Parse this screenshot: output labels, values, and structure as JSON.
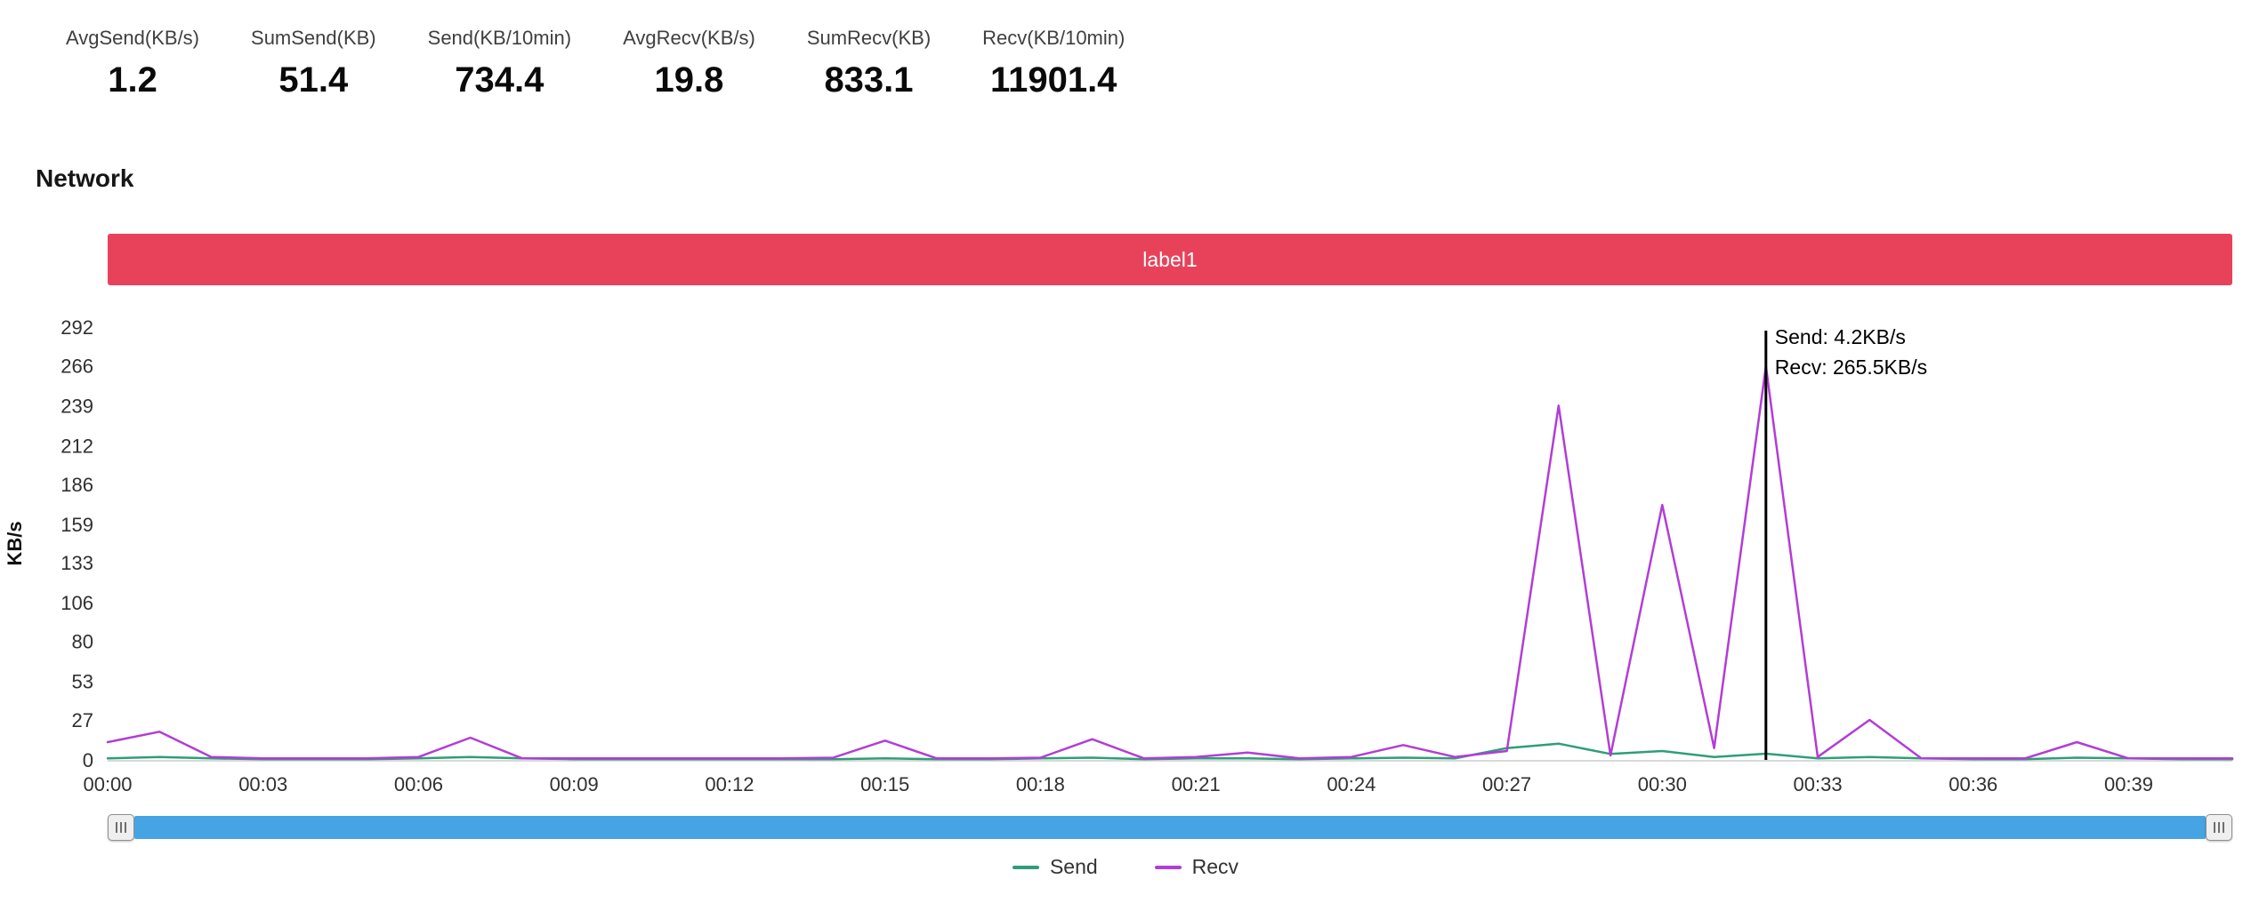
{
  "stats": [
    {
      "label": "AvgSend(KB/s)",
      "value": "1.2"
    },
    {
      "label": "SumSend(KB)",
      "value": "51.4"
    },
    {
      "label": "Send(KB/10min)",
      "value": "734.4"
    },
    {
      "label": "AvgRecv(KB/s)",
      "value": "19.8"
    },
    {
      "label": "SumRecv(KB)",
      "value": "833.1"
    },
    {
      "label": "Recv(KB/10min)",
      "value": "11901.4"
    }
  ],
  "section_title": "Network",
  "banner_label": "label1",
  "colors": {
    "banner": "#e8425a",
    "send": "#2f9e77",
    "recv": "#b23dd6",
    "slider_track": "#47a4e4",
    "marker_line": "#000000"
  },
  "chart_data": {
    "type": "line",
    "title": "Network",
    "ylabel": "KB/s",
    "ylim": [
      0,
      292
    ],
    "grid": false,
    "legend_position": "bottom",
    "y_ticks": [
      0,
      27,
      53,
      80,
      106,
      133,
      159,
      186,
      212,
      239,
      266,
      292
    ],
    "x": [
      0,
      1,
      2,
      3,
      4,
      5,
      6,
      7,
      8,
      9,
      10,
      11,
      12,
      13,
      14,
      15,
      16,
      17,
      18,
      19,
      20,
      21,
      22,
      23,
      24,
      25,
      26,
      27,
      28,
      29,
      30,
      31,
      32,
      33,
      34,
      35,
      36,
      37,
      38,
      39,
      40,
      41
    ],
    "x_tick_minutes": [
      0,
      3,
      6,
      9,
      12,
      15,
      18,
      21,
      24,
      27,
      30,
      33,
      36,
      39
    ],
    "x_tick_labels": [
      "00:00",
      "00:03",
      "00:06",
      "00:09",
      "00:12",
      "00:15",
      "00:18",
      "00:21",
      "00:24",
      "00:27",
      "00:30",
      "00:33",
      "00:36",
      "00:39"
    ],
    "series": [
      {
        "name": "Send",
        "color": "#2f9e77",
        "values": [
          1,
          2,
          1,
          0.5,
          0.5,
          0.5,
          1,
          2,
          1,
          0.5,
          0.5,
          0.5,
          0.5,
          0.5,
          0.5,
          1,
          0.5,
          0.5,
          1,
          1.5,
          0.5,
          1,
          1,
          0.5,
          1,
          1.5,
          1,
          8,
          11,
          4,
          6,
          2,
          4.2,
          1,
          2,
          1,
          0.5,
          0.5,
          1.5,
          1,
          0.5,
          0.5
        ]
      },
      {
        "name": "Recv",
        "color": "#b23dd6",
        "values": [
          12,
          19,
          2,
          1,
          1,
          1,
          2,
          15,
          1,
          1,
          1,
          1,
          1,
          1,
          1.5,
          13,
          1,
          1,
          1.5,
          14,
          1,
          2,
          5,
          1,
          2,
          10,
          2,
          6,
          239,
          3,
          172,
          8,
          265.5,
          2,
          27,
          1,
          1,
          1,
          12,
          1,
          1,
          1
        ]
      }
    ],
    "tooltip": {
      "x": 32,
      "lines": [
        "Send: 4.2KB/s",
        "Recv: 265.5KB/s"
      ]
    }
  }
}
